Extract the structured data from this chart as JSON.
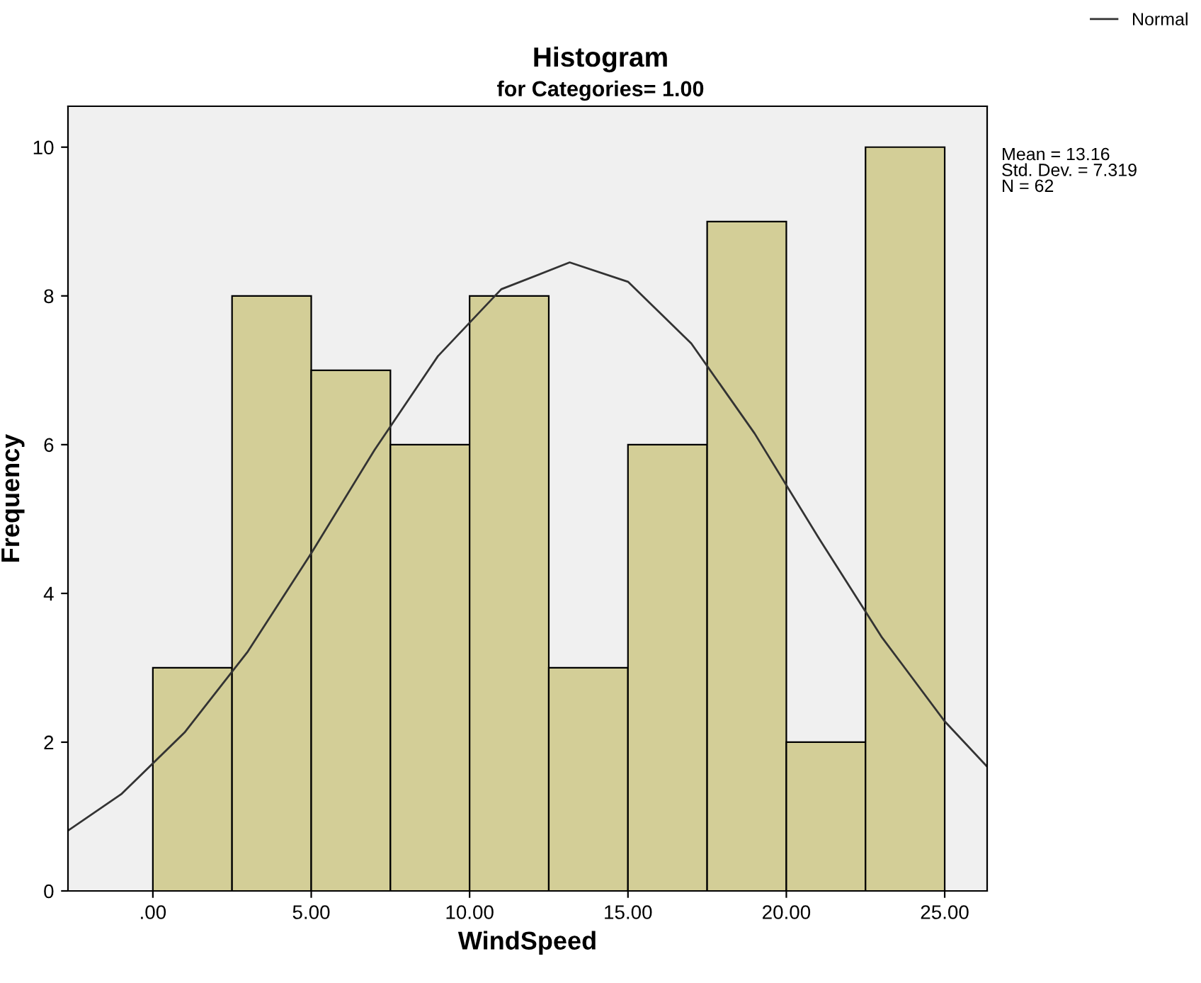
{
  "chart_data": {
    "type": "histogram",
    "title": "Histogram",
    "subtitle": "for Categories= 1.00",
    "xlabel": "WindSpeed",
    "ylabel": "Frequency",
    "bins": [
      0,
      2.5,
      5,
      7.5,
      10,
      12.5,
      15,
      17.5,
      20,
      22.5,
      25
    ],
    "values": [
      3,
      8,
      7,
      6,
      8,
      3,
      6,
      9,
      2,
      10
    ],
    "color": "#d3ce97",
    "series": [
      {
        "type": "line",
        "name": "Normal",
        "color": "#333333",
        "x": [
          -2.68,
          -1,
          1,
          3,
          5,
          7,
          9,
          11,
          13.16,
          15,
          17,
          19,
          21,
          23,
          25,
          26.34
        ],
        "values": [
          0.81,
          1.3,
          2.13,
          3.22,
          4.54,
          5.93,
          7.19,
          8.09,
          8.45,
          8.19,
          7.36,
          6.15,
          4.76,
          3.42,
          2.28,
          1.67
        ]
      }
    ],
    "xlim": [
      -2.68,
      26.34
    ],
    "ylim": [
      0,
      10.55
    ],
    "xticks": [
      {
        "value": 0,
        "label": ".00"
      },
      {
        "value": 5,
        "label": "5.00"
      },
      {
        "value": 10,
        "label": "10.00"
      },
      {
        "value": 15,
        "label": "15.00"
      },
      {
        "value": 20,
        "label": "20.00"
      },
      {
        "value": 25,
        "label": "25.00"
      }
    ],
    "yticks": [
      0,
      2,
      4,
      6,
      8,
      10
    ],
    "annotations": [
      "Mean = 13.16\nStd. Dev. = 7.319\nN = 62"
    ],
    "legend": "top right",
    "grid": false
  }
}
